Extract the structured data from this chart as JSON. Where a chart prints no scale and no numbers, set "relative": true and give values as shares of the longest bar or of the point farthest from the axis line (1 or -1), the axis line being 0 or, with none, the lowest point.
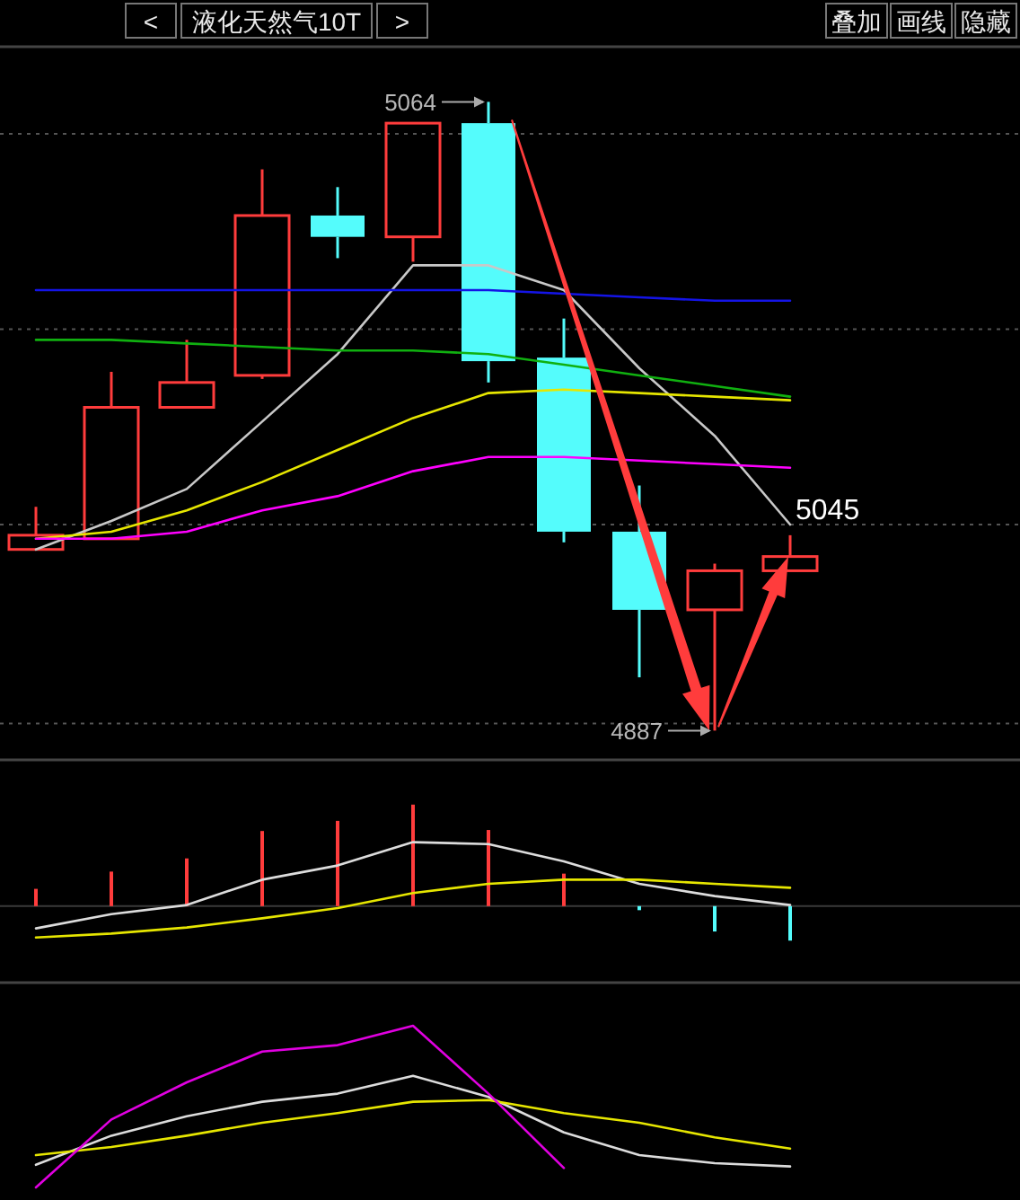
{
  "chart_data": [
    {
      "type": "candlestick",
      "title": "液化天然气10T",
      "categories": [
        null,
        null,
        null,
        null,
        null,
        null,
        null,
        null,
        null,
        null,
        null
      ],
      "ohlc": [
        [
          4938,
          4950,
          4938,
          4942
        ],
        [
          4941,
          4988,
          4941,
          4978
        ],
        [
          4978,
          4997,
          4978,
          4985
        ],
        [
          4987,
          5045,
          4986,
          5032
        ],
        [
          5032,
          5040,
          5020,
          5026
        ],
        [
          5026,
          5058,
          5019,
          5058
        ],
        [
          5058,
          5064,
          4985,
          4991
        ],
        [
          4992,
          5003,
          4940,
          4943
        ],
        [
          4943,
          4956,
          4902,
          4921
        ],
        [
          4921,
          4934,
          4887,
          4932
        ],
        [
          4932,
          4942,
          4932,
          4936
        ]
      ],
      "colors": [
        "#ff3c3c",
        "#ff3c3c",
        "#ff3c3c",
        "#ff3c3c",
        "#54fcfc",
        "#ff3c3c",
        "#54fcfc",
        "#54fcfc",
        "#54fcfc",
        "#ff3c3c",
        "#ff3c3c"
      ],
      "series": [
        {
          "type": "line",
          "color": "#c8c8c8",
          "values": [
            4938,
            4946,
            4955,
            4974,
            4993,
            5018,
            5018,
            5011,
            4989,
            4970,
            4945
          ]
        },
        {
          "type": "line",
          "color": "#e6e600",
          "values": [
            4941,
            4943,
            4949,
            4957,
            4966,
            4975,
            4982,
            4983,
            4982,
            4981,
            4980
          ]
        },
        {
          "type": "line",
          "color": "#ff00ff",
          "values": [
            4941,
            4941,
            4943,
            4949,
            4953,
            4960,
            4964,
            4964,
            4963,
            4962,
            4961
          ]
        },
        {
          "type": "line",
          "color": "#1414e6",
          "values": [
            5011,
            5011,
            5011,
            5011,
            5011,
            5011,
            5011,
            5010,
            5009,
            5008,
            5008
          ]
        },
        {
          "type": "line",
          "color": "#10b010",
          "values": [
            4997,
            4997,
            4996,
            4995,
            4994,
            4994,
            4993,
            4990,
            4987,
            4984,
            4981
          ]
        }
      ],
      "yticks": [
        {
          "value": 5055,
          "label": null
        },
        {
          "value": 5000,
          "label": null
        },
        {
          "value": 4945,
          "label": null
        },
        {
          "value": 4889,
          "label": null
        }
      ],
      "grid": "y",
      "annotations": [
        "<",
        ">",
        "叠加",
        "画线",
        "隐藏",
        "5064",
        "4887",
        "5045"
      ]
    },
    {
      "type": "line",
      "relative": true,
      "categories": [
        null,
        null,
        null,
        null,
        null,
        null,
        null,
        null,
        null,
        null,
        null
      ],
      "series": [
        {
          "type": "bar",
          "colors": [
            "#ff3c3c",
            "#ff3c3c",
            "#ff3c3c",
            "#ff3c3c",
            "#ff3c3c",
            "#ff3c3c",
            "#ff3c3c",
            "#ff3c3c",
            "#54fcfc",
            "#54fcfc",
            "#54fcfc"
          ],
          "values": [
            0.17,
            0.34,
            0.47,
            0.74,
            0.84,
            1,
            0.75,
            0.32,
            -0.04,
            -0.25,
            -0.34
          ]
        },
        {
          "type": "line",
          "color": "#dcdcdc",
          "values": [
            -0.22,
            -0.08,
            0.01,
            0.26,
            0.4,
            0.63,
            0.61,
            0.44,
            0.22,
            0.1,
            0.01
          ]
        },
        {
          "type": "line",
          "color": "#e6e600",
          "values": [
            -0.31,
            -0.27,
            -0.21,
            -0.12,
            -0.02,
            0.13,
            0.22,
            0.26,
            0.26,
            0.22,
            0.18
          ]
        }
      ]
    },
    {
      "type": "line",
      "relative": true,
      "categories": [
        null,
        null,
        null,
        null,
        null,
        null,
        null,
        null,
        null,
        null,
        null
      ],
      "series": [
        {
          "type": "line",
          "color": "#dcdcdc",
          "values": [
            0.14,
            0.32,
            0.44,
            0.53,
            0.58,
            0.69,
            0.56,
            0.34,
            0.2,
            0.15,
            0.13
          ]
        },
        {
          "type": "line",
          "color": "#e6e600",
          "values": [
            0.2,
            0.25,
            0.32,
            0.4,
            0.46,
            0.53,
            0.54,
            0.46,
            0.4,
            0.31,
            0.24
          ]
        },
        {
          "type": "line",
          "color": "#e000e0",
          "values": [
            0,
            0.42,
            0.65,
            0.84,
            0.88,
            1,
            0.58,
            0.12,
            null,
            null,
            null
          ]
        }
      ]
    }
  ]
}
